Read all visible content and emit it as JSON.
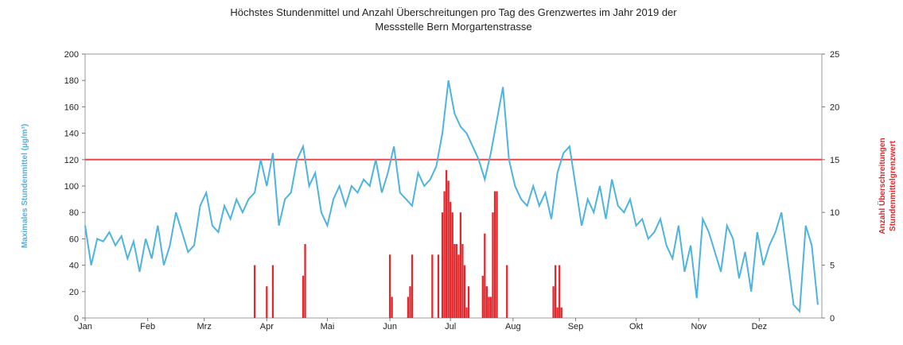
{
  "chart_data": {
    "type": "line_bar",
    "title": [
      "Höchstes Stundenmittel und Anzahl Überschreitungen pro Tag des Grenzwertes im Jahr 2019 der",
      "Messstelle Bern Morgartenstrasse"
    ],
    "ylabel": "Maximales Stundenmittel (µg/m³)",
    "y2label": [
      "Anzahl Überschreitungen",
      "Stundenmittelgrenzwert"
    ],
    "xlim": [
      0,
      365
    ],
    "xticks": [
      {
        "value": 0,
        "label": "Jan"
      },
      {
        "value": 31,
        "label": "Feb"
      },
      {
        "value": 59,
        "label": "Mrz"
      },
      {
        "value": 90,
        "label": "Apr"
      },
      {
        "value": 120,
        "label": "Mai"
      },
      {
        "value": 151,
        "label": "Jun"
      },
      {
        "value": 181,
        "label": "Jul"
      },
      {
        "value": 212,
        "label": "Aug"
      },
      {
        "value": 243,
        "label": "Sep"
      },
      {
        "value": 273,
        "label": "Okt"
      },
      {
        "value": 304,
        "label": "Nov"
      },
      {
        "value": 334,
        "label": "Dez"
      }
    ],
    "ylim": [
      0,
      200
    ],
    "yticks": [
      0,
      20,
      40,
      60,
      80,
      100,
      120,
      140,
      160,
      180,
      200
    ],
    "y2lim": [
      0,
      25
    ],
    "y2ticks": [
      0,
      5,
      10,
      15,
      20,
      25
    ],
    "grid": false,
    "hline": {
      "value": 120,
      "color": "#e8474a"
    },
    "series": [
      {
        "kind": "line",
        "axis": "y",
        "color": "#4db3df",
        "x": [
          0,
          3,
          6,
          9,
          12,
          15,
          18,
          21,
          24,
          27,
          30,
          33,
          36,
          39,
          42,
          45,
          48,
          51,
          54,
          57,
          60,
          63,
          66,
          69,
          72,
          75,
          78,
          81,
          84,
          87,
          90,
          93,
          96,
          99,
          102,
          105,
          108,
          111,
          114,
          117,
          120,
          123,
          126,
          129,
          132,
          135,
          138,
          141,
          144,
          147,
          150,
          153,
          156,
          159,
          162,
          165,
          168,
          171,
          174,
          177,
          180,
          183,
          186,
          189,
          192,
          195,
          198,
          201,
          204,
          207,
          210,
          213,
          216,
          219,
          222,
          225,
          228,
          231,
          234,
          237,
          240,
          243,
          246,
          249,
          252,
          255,
          258,
          261,
          264,
          267,
          270,
          273,
          276,
          279,
          282,
          285,
          288,
          291,
          294,
          297,
          300,
          303,
          306,
          309,
          312,
          315,
          318,
          321,
          324,
          327,
          330,
          333,
          336,
          339,
          342,
          345,
          348,
          351,
          354,
          357,
          360,
          363
        ],
        "values": [
          70,
          40,
          60,
          58,
          65,
          55,
          62,
          45,
          58,
          35,
          60,
          45,
          70,
          40,
          55,
          80,
          65,
          50,
          55,
          85,
          95,
          70,
          65,
          85,
          75,
          90,
          80,
          90,
          95,
          120,
          100,
          125,
          70,
          90,
          95,
          120,
          130,
          100,
          110,
          80,
          70,
          90,
          100,
          85,
          100,
          95,
          105,
          100,
          120,
          95,
          110,
          130,
          95,
          90,
          85,
          110,
          100,
          105,
          115,
          140,
          180,
          155,
          145,
          140,
          130,
          120,
          105,
          125,
          150,
          175,
          120,
          100,
          90,
          85,
          100,
          85,
          95,
          75,
          110,
          125,
          130,
          100,
          70,
          90,
          80,
          100,
          75,
          105,
          85,
          80,
          90,
          70,
          75,
          60,
          65,
          75,
          55,
          45,
          70,
          35,
          55,
          15,
          75,
          65,
          50,
          35,
          70,
          60,
          30,
          50,
          20,
          65,
          40,
          55,
          65,
          80,
          45,
          10,
          5,
          70,
          55,
          10
        ]
      },
      {
        "kind": "bar",
        "axis": "y2",
        "color": "#e0282d",
        "x": [
          84,
          90,
          93,
          108,
          109,
          151,
          152,
          160,
          161,
          162,
          172,
          175,
          177,
          178,
          179,
          180,
          181,
          182,
          183,
          184,
          185,
          186,
          187,
          188,
          189,
          190,
          197,
          198,
          199,
          200,
          201,
          202,
          203,
          204,
          209,
          232,
          233,
          234,
          235,
          236
        ],
        "values": [
          5,
          3,
          5,
          4,
          7,
          6,
          2,
          2,
          3,
          6,
          6,
          6,
          10,
          12,
          14,
          13,
          11,
          10,
          7,
          7,
          6,
          10,
          7,
          5,
          1,
          3,
          4,
          8,
          3,
          2,
          2,
          10,
          12,
          12,
          5,
          3,
          5,
          1,
          5,
          1
        ]
      }
    ]
  }
}
